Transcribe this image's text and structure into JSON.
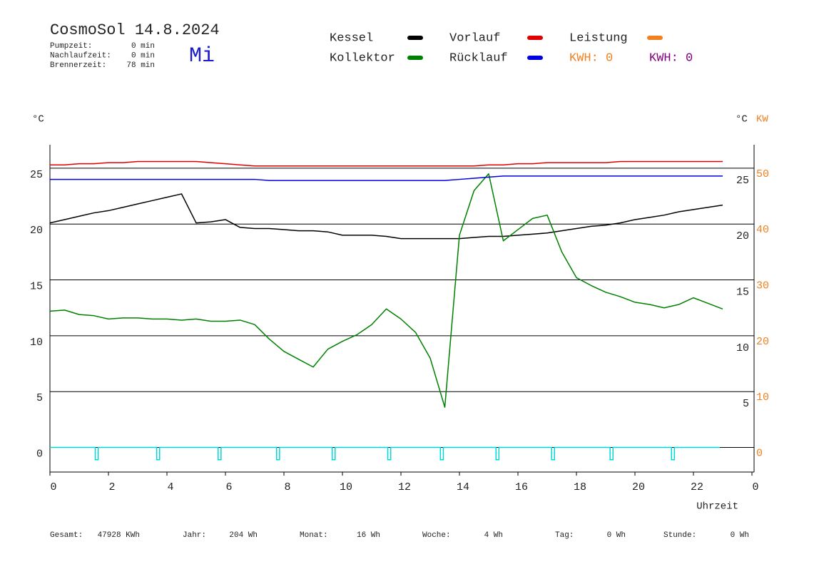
{
  "header": {
    "title": "CosmoSol 14.8.2024",
    "weekday": "Mi",
    "stats": [
      {
        "label": "Pumpzeit:",
        "value": "0 min"
      },
      {
        "label": "Nachlaufzeit:",
        "value": "0 min"
      },
      {
        "label": "Brennerzeit:",
        "value": "78 min"
      }
    ]
  },
  "chart_data": {
    "type": "line",
    "y_unit": "°C",
    "y2_unit": "°C",
    "y2_power_unit": "KW",
    "x_label": "Uhrzeit",
    "x": [
      0,
      0.5,
      1,
      1.5,
      2,
      2.5,
      3,
      3.5,
      4,
      4.5,
      5,
      5.5,
      6,
      6.5,
      7,
      7.5,
      8,
      8.5,
      9,
      9.5,
      10,
      10.5,
      11,
      11.5,
      12,
      12.5,
      13,
      13.5,
      14,
      14.5,
      15,
      15.5,
      16,
      16.5,
      17,
      17.5,
      18,
      18.5,
      19,
      19.5,
      20,
      20.5,
      21,
      21.5,
      22,
      22.5,
      23
    ],
    "xlim": [
      0,
      24
    ],
    "xticks": [
      0,
      2,
      4,
      6,
      8,
      10,
      12,
      14,
      16,
      18,
      20,
      22,
      {
        "value": 24,
        "label": "0"
      }
    ],
    "ylim": [
      -2.2,
      27.1
    ],
    "yticks": [
      0,
      5,
      10,
      15,
      20,
      25
    ],
    "y_right_ticks": [
      5,
      10,
      15,
      20,
      25
    ],
    "y2lim": [
      -4.4,
      54.2
    ],
    "y2ticks": [
      0,
      10,
      20,
      30,
      40,
      50
    ],
    "y2_color": "#f08020",
    "grid": true,
    "series": [
      {
        "name": "Kessel",
        "color": "#000000",
        "values": [
          20.1,
          20.4,
          20.7,
          21.0,
          21.2,
          21.5,
          21.8,
          22.1,
          22.4,
          22.7,
          20.1,
          20.2,
          20.4,
          19.7,
          19.6,
          19.6,
          19.5,
          19.4,
          19.4,
          19.3,
          19.0,
          19.0,
          19.0,
          18.9,
          18.7,
          18.7,
          18.7,
          18.7,
          18.7,
          18.8,
          18.9,
          18.9,
          19.0,
          19.1,
          19.2,
          19.4,
          19.6,
          19.8,
          19.9,
          20.1,
          20.4,
          20.6,
          20.8,
          21.1,
          21.3,
          21.5,
          21.7
        ]
      },
      {
        "name": "Kollektor",
        "color": "#008000",
        "values": [
          12.2,
          12.3,
          11.9,
          11.8,
          11.5,
          11.6,
          11.6,
          11.5,
          11.5,
          11.4,
          11.5,
          11.3,
          11.3,
          11.4,
          11.0,
          9.7,
          8.6,
          7.9,
          7.2,
          8.8,
          9.5,
          10.1,
          11.0,
          12.4,
          11.5,
          10.3,
          8.0,
          3.6,
          19.0,
          23.0,
          24.5,
          18.5,
          19.5,
          20.5,
          20.8,
          17.5,
          15.2,
          14.5,
          13.9,
          13.5,
          13.0,
          12.8,
          12.5,
          12.8,
          13.4,
          12.9,
          12.4
        ]
      },
      {
        "name": "Vorlauf",
        "color": "#e00000",
        "values": [
          25.3,
          25.3,
          25.4,
          25.4,
          25.5,
          25.5,
          25.6,
          25.6,
          25.6,
          25.6,
          25.6,
          25.5,
          25.4,
          25.3,
          25.2,
          25.2,
          25.2,
          25.2,
          25.2,
          25.2,
          25.2,
          25.2,
          25.2,
          25.2,
          25.2,
          25.2,
          25.2,
          25.2,
          25.2,
          25.2,
          25.3,
          25.3,
          25.4,
          25.4,
          25.5,
          25.5,
          25.5,
          25.5,
          25.5,
          25.6,
          25.6,
          25.6,
          25.6,
          25.6,
          25.6,
          25.6,
          25.6
        ]
      },
      {
        "name": "Rücklauf",
        "color": "#0000e0",
        "values": [
          24.0,
          24.0,
          24.0,
          24.0,
          24.0,
          24.0,
          24.0,
          24.0,
          24.0,
          24.0,
          24.0,
          24.0,
          24.0,
          24.0,
          24.0,
          23.9,
          23.9,
          23.9,
          23.9,
          23.9,
          23.9,
          23.9,
          23.9,
          23.9,
          23.9,
          23.9,
          23.9,
          23.9,
          24.0,
          24.1,
          24.2,
          24.3,
          24.3,
          24.3,
          24.3,
          24.3,
          24.3,
          24.3,
          24.3,
          24.3,
          24.3,
          24.3,
          24.3,
          24.3,
          24.3,
          24.3,
          24.3
        ]
      },
      {
        "name": "Leistung",
        "color": "#f08020"
      }
    ],
    "kwh_labels": [
      {
        "text": "KWH: 0",
        "color": "#f08020"
      },
      {
        "text": "KWH: 0",
        "color": "#800080"
      }
    ],
    "pump": {
      "color": "#00d8d8",
      "on": 0,
      "off": -1.1,
      "end": 22.9,
      "pulses": [
        1.6,
        3.7,
        5.8,
        7.8,
        9.7,
        11.6,
        13.4,
        15.3,
        17.2,
        19.2,
        21.3
      ]
    }
  },
  "footer": [
    {
      "label": "Gesamt:",
      "value": "47928 KWh"
    },
    {
      "label": "Jahr:",
      "value": "204 Wh"
    },
    {
      "label": "Monat:",
      "value": "16 Wh"
    },
    {
      "label": "Woche:",
      "value": "4 Wh"
    },
    {
      "label": "Tag:",
      "value": "0 Wh"
    },
    {
      "label": "Stunde:",
      "value": "0 Wh"
    }
  ]
}
